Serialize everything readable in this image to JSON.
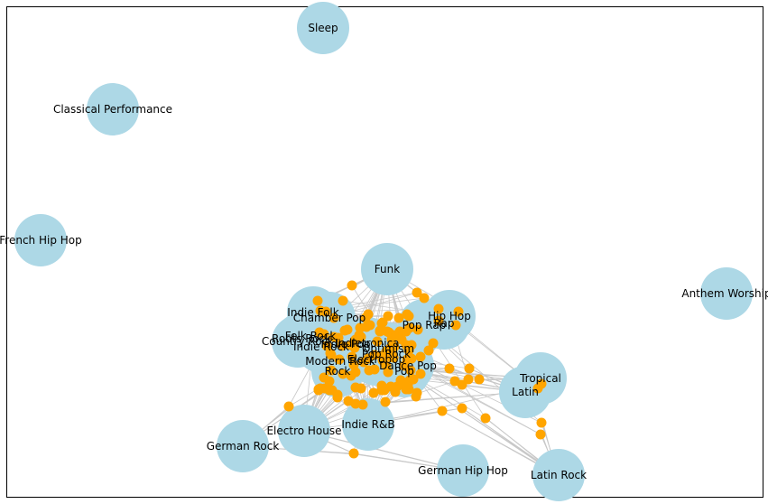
{
  "colors": {
    "genre_node": "#add8e6",
    "artist_node": "#ffa500",
    "edge": "#c8c8c8",
    "frame": "#000000"
  },
  "genres": [
    {
      "label": "Sleep"
    },
    {
      "label": "Classical Performance"
    },
    {
      "label": "French Hip Hop"
    },
    {
      "label": "Anthem Worship"
    },
    {
      "label": "Funk"
    },
    {
      "label": "Indie Folk"
    },
    {
      "label": "Chamber Pop"
    },
    {
      "label": "Hip Hop"
    },
    {
      "label": "Rap"
    },
    {
      "label": "Pop Rap"
    },
    {
      "label": "Folk Rock"
    },
    {
      "label": "Roots Rock"
    },
    {
      "label": "Country Rock"
    },
    {
      "label": "Indie Rock"
    },
    {
      "label": "Indietronica"
    },
    {
      "label": "Indie Pop"
    },
    {
      "label": "Optimism"
    },
    {
      "label": "Pop Rock"
    },
    {
      "label": "Electropop"
    },
    {
      "label": "Modern Rock"
    },
    {
      "label": "Dance Pop"
    },
    {
      "label": "Rock"
    },
    {
      "label": "Pop"
    },
    {
      "label": "Tropical"
    },
    {
      "label": "Latin"
    },
    {
      "label": "Indie R&B"
    },
    {
      "label": "Electro House"
    },
    {
      "label": "German Rock"
    },
    {
      "label": "German Hip Hop"
    },
    {
      "label": "Latin Rock"
    }
  ]
}
